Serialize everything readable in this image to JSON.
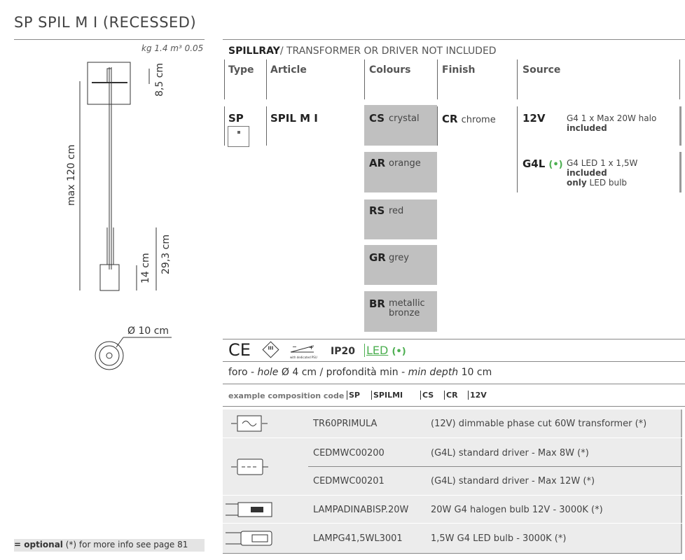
{
  "title": "SP SPIL M I (RECESSED)",
  "weight": "kg 1.4 m³ 0.05",
  "dimensions": {
    "height_top": "8,5 cm",
    "max_length": "max 120 cm",
    "body_height": "14 cm",
    "total_height": "29,3 cm",
    "diameter": "Ø 10 cm"
  },
  "header": {
    "brand": "SPILLRAY",
    "subtitle": "/ TRANSFORMER OR DRIVER NOT INCLUDED"
  },
  "columns": [
    "Type",
    "Article",
    "Colours",
    "Finish",
    "Source"
  ],
  "type": "SP",
  "article": "SPIL M I",
  "colours": [
    {
      "code": "CS",
      "name": "crystal"
    },
    {
      "code": "AR",
      "name": "orange"
    },
    {
      "code": "RS",
      "name": "red"
    },
    {
      "code": "GR",
      "name": "grey"
    },
    {
      "code": "BR",
      "name": "metallic bronze"
    }
  ],
  "finish": {
    "code": "CR",
    "name": "chrome"
  },
  "sources": [
    {
      "code": "12V",
      "desc": "G4 1 x Max 20W halo",
      "inc": "included",
      "extra_b": "",
      "extra": ""
    },
    {
      "code": "G4L",
      "badge": "(•)",
      "desc": "G4 LED 1 x 1,5W",
      "inc": "included",
      "extra_b": "only",
      "extra": " LED bulb"
    }
  ],
  "certs": {
    "ce": "CE",
    "class": "III",
    "psu": "with dedicated PSU",
    "ip": "IP20",
    "led": "LED",
    "led_badge": "(•)"
  },
  "accent": "#4caf50",
  "hole": {
    "a": "foro - ",
    "b": "hole",
    "c": " Ø 4 cm  /  profondità min - ",
    "d": "min depth",
    "e": " 10 cm"
  },
  "example": {
    "label": "example composition code",
    "codes": [
      "SP",
      "SPILMI",
      "CS",
      "CR",
      "12V"
    ]
  },
  "accessories": [
    {
      "icon": "transformer-icon",
      "code": "TR60PRIMULA",
      "desc": "(12V) dimmable phase cut 60W transformer (*)"
    },
    {
      "icon": "driver-icon",
      "code": "CEDMWC00200",
      "desc": "(G4L) standard driver - Max 8W  (*)"
    },
    {
      "icon": "driver-icon",
      "code": "CEDMWC00201",
      "desc": "(G4L) standard driver - Max 12W  (*)"
    },
    {
      "icon": "halogen-bulb-icon",
      "code": "LAMPADINABISP.20W",
      "desc": "20W G4 halogen bulb 12V - 3000K (*)"
    },
    {
      "icon": "led-bulb-icon",
      "code": "LAMPG41,5WL3001",
      "desc": "1,5W G4 LED bulb - 3000K  (*)"
    }
  ],
  "footer": {
    "bold": "= optional",
    "rest": " (*) for more info see page 81"
  }
}
